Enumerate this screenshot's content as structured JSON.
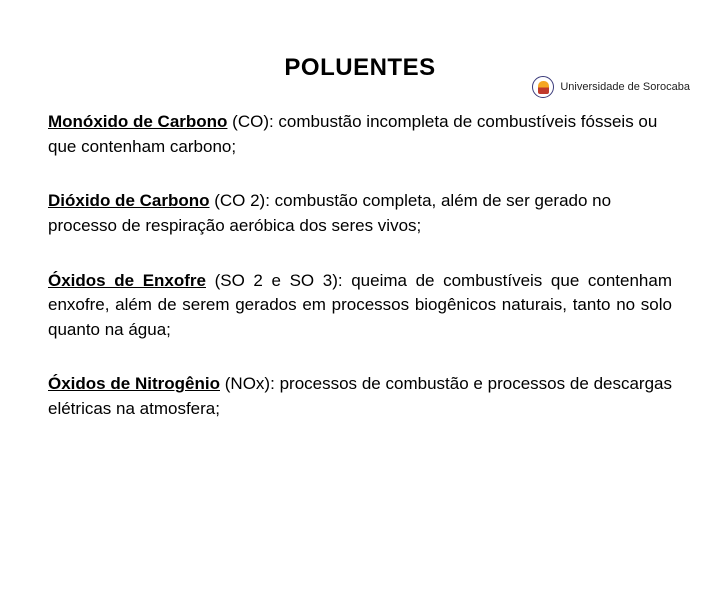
{
  "logo": {
    "university": "Universidade de Sorocaba"
  },
  "title": {
    "text": "POLUENTES",
    "fontsize": 24,
    "color": "#000000"
  },
  "body": {
    "fontsize": 17,
    "color": "#000000",
    "paragraphs": [
      {
        "term": "Monóxido de Carbono",
        "rest": " (CO): combustão incompleta de combustíveis fósseis ou que contenham carbono;",
        "justify": false
      },
      {
        "term": "Dióxido de Carbono",
        "rest": " (CO 2): combustão completa, além de ser gerado no processo de respiração aeróbica dos seres vivos;",
        "justify": false
      },
      {
        "term": "Óxidos de Enxofre",
        "rest": " (SO 2 e SO 3): queima de combustíveis que contenham enxofre, além de serem gerados em processos biogênicos naturais, tanto no solo quanto na água;",
        "justify": true
      },
      {
        "term": "Óxidos de Nitrogênio",
        "rest": " (NOx): processos de combustão e processos de descargas elétricas na atmosfera;",
        "justify": true
      }
    ]
  },
  "colors": {
    "background": "#ffffff",
    "text": "#000000",
    "logo_border": "#3a3a7a",
    "logo_fill_top": "#f5a623",
    "logo_fill_bottom": "#c0392b"
  }
}
